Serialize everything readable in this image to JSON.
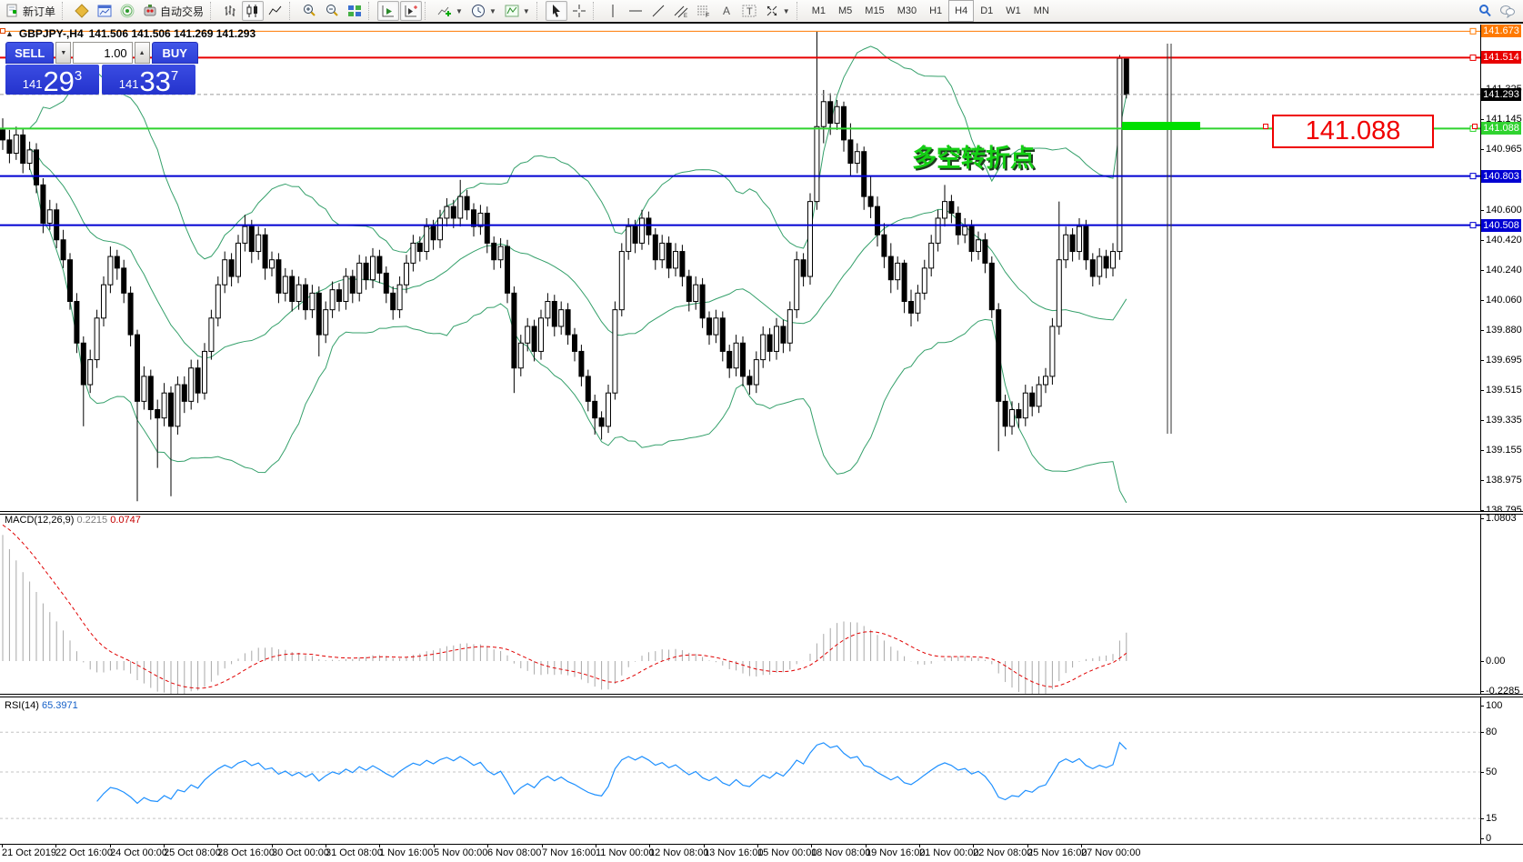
{
  "toolbar": {
    "new_order_label": "新订单",
    "auto_trading_label": "自动交易",
    "timeframes": [
      "M1",
      "M5",
      "M15",
      "M30",
      "H1",
      "H4",
      "D1",
      "W1",
      "MN"
    ],
    "active_timeframe": "H4"
  },
  "title": {
    "collapse_icon": "▲",
    "symbol": "GBPJPY-,H4",
    "ohlc": "141.506 141.506 141.269 141.293"
  },
  "trade_panel": {
    "sell_label": "SELL",
    "buy_label": "BUY",
    "volume": "1.00",
    "sell_prefix": "141",
    "sell_big": "29",
    "sell_sup": "3",
    "buy_prefix": "141",
    "buy_big": "33",
    "buy_sup": "7",
    "step_down": "▼",
    "step_up": "▲"
  },
  "objects": {
    "annotation": "多空转折点",
    "price_box": "141.088"
  },
  "hlines": [
    {
      "price": 141.673,
      "color": "#ff7a00",
      "width": 1
    },
    {
      "price": 141.514,
      "color": "#e80000",
      "width": 2
    },
    {
      "price": 141.088,
      "color": "#2fd32f",
      "width": 2
    },
    {
      "price": 140.803,
      "color": "#0000d2",
      "width": 2
    },
    {
      "price": 140.508,
      "color": "#0000d2",
      "width": 2
    }
  ],
  "bid": {
    "price": 141.293
  },
  "price_axis": {
    "ticks": [
      "141.505",
      "141.325",
      "141.145",
      "140.965",
      "140.785",
      "140.600",
      "140.420",
      "140.240",
      "140.060",
      "139.880",
      "139.695",
      "139.515",
      "139.335",
      "139.155",
      "138.975",
      "138.795"
    ],
    "badges": [
      {
        "text": "141.673",
        "bg": "#ff7a00",
        "price": 141.673
      },
      {
        "text": "141.514",
        "bg": "#e80000",
        "price": 141.514
      },
      {
        "text": "141.293",
        "bg": "#000000",
        "price": 141.293
      },
      {
        "text": "141.088",
        "bg": "#2fd32f",
        "price": 141.088
      },
      {
        "text": "140.803",
        "bg": "#0000d2",
        "price": 140.803
      },
      {
        "text": "140.508",
        "bg": "#0000d2",
        "price": 140.508
      }
    ]
  },
  "macd": {
    "name": "MACD(12,26,9)",
    "v1": "0.2215",
    "v2": "0.0747",
    "axis": [
      {
        "t": "1.0803",
        "v": 1.0803
      },
      {
        "t": "0.00",
        "v": 0
      },
      {
        "t": "-0.2285",
        "v": -0.2285
      }
    ]
  },
  "rsi": {
    "name": "RSI(14)",
    "v": "65.3971",
    "axis": [
      {
        "t": "100",
        "v": 100
      },
      {
        "t": "80",
        "v": 80
      },
      {
        "t": "50",
        "v": 50
      },
      {
        "t": "15",
        "v": 15
      },
      {
        "t": "0",
        "v": 0
      }
    ],
    "levels": [
      80,
      50,
      15
    ]
  },
  "chart_data": {
    "type": "candlestick",
    "title": "GBPJPY-,H4",
    "symbol": "GBPJPY",
    "period": "H4",
    "ylim": [
      138.795,
      141.713
    ],
    "x_labels": [
      "21 Oct 2019",
      "22 Oct 16:00",
      "24 Oct 00:00",
      "25 Oct 08:00",
      "28 Oct 16:00",
      "30 Oct 00:00",
      "31 Oct 08:00",
      "1 Nov 16:00",
      "5 Nov 00:00",
      "6 Nov 08:00",
      "7 Nov 16:00",
      "11 Nov 00:00",
      "12 Nov 08:00",
      "13 Nov 16:00",
      "15 Nov 00:00",
      "18 Nov 08:00",
      "19 Nov 16:00",
      "21 Nov 00:00",
      "22 Nov 08:00",
      "25 Nov 16:00",
      "27 Nov 00:00"
    ],
    "indicators": [
      {
        "name": "Bollinger Bands",
        "period": 20,
        "deviation": 2,
        "color": "#35a06b"
      },
      {
        "name": "MACD",
        "fast": 12,
        "slow": 26,
        "signal": 9,
        "current": [
          0.2215,
          0.0747
        ]
      },
      {
        "name": "RSI",
        "period": 14,
        "current": 65.3971
      }
    ],
    "candles": [
      [
        141.08,
        141.15,
        140.96,
        141.02
      ],
      [
        141.02,
        141.08,
        140.88,
        140.94
      ],
      [
        140.94,
        141.1,
        140.9,
        141.05
      ],
      [
        141.05,
        141.09,
        140.82,
        140.88
      ],
      [
        140.88,
        141.01,
        140.84,
        140.96
      ],
      [
        140.96,
        141.0,
        140.7,
        140.75
      ],
      [
        140.75,
        140.79,
        140.46,
        140.52
      ],
      [
        140.52,
        140.66,
        140.48,
        140.6
      ],
      [
        140.6,
        140.64,
        140.37,
        140.42
      ],
      [
        140.42,
        140.48,
        140.25,
        140.3
      ],
      [
        140.3,
        140.34,
        140.0,
        140.05
      ],
      [
        140.05,
        140.1,
        139.74,
        139.8
      ],
      [
        139.8,
        139.84,
        139.3,
        139.55
      ],
      [
        139.55,
        139.76,
        139.5,
        139.7
      ],
      [
        139.7,
        140.0,
        139.65,
        139.95
      ],
      [
        139.95,
        140.2,
        139.9,
        140.15
      ],
      [
        140.15,
        140.38,
        140.1,
        140.32
      ],
      [
        140.32,
        140.36,
        140.18,
        140.25
      ],
      [
        140.25,
        140.3,
        140.04,
        140.1
      ],
      [
        140.1,
        140.14,
        139.78,
        139.85
      ],
      [
        139.85,
        139.88,
        138.85,
        139.45
      ],
      [
        139.45,
        139.66,
        139.4,
        139.6
      ],
      [
        139.6,
        139.64,
        139.34,
        139.4
      ],
      [
        139.4,
        139.46,
        139.05,
        139.35
      ],
      [
        139.35,
        139.56,
        139.3,
        139.5
      ],
      [
        139.5,
        139.54,
        138.88,
        139.3
      ],
      [
        139.3,
        139.6,
        139.25,
        139.55
      ],
      [
        139.55,
        139.6,
        139.38,
        139.45
      ],
      [
        139.45,
        139.7,
        139.4,
        139.65
      ],
      [
        139.65,
        139.7,
        139.44,
        139.5
      ],
      [
        139.5,
        139.8,
        139.46,
        139.75
      ],
      [
        139.75,
        140.0,
        139.7,
        139.95
      ],
      [
        139.95,
        140.2,
        139.9,
        140.15
      ],
      [
        140.15,
        140.35,
        140.1,
        140.3
      ],
      [
        140.3,
        140.34,
        140.14,
        140.2
      ],
      [
        140.2,
        140.45,
        140.16,
        140.4
      ],
      [
        140.4,
        140.57,
        140.35,
        140.5
      ],
      [
        140.5,
        140.54,
        140.28,
        140.35
      ],
      [
        140.35,
        140.5,
        140.3,
        140.45
      ],
      [
        140.45,
        140.49,
        140.18,
        140.25
      ],
      [
        140.25,
        140.35,
        140.2,
        140.3
      ],
      [
        140.3,
        140.34,
        140.04,
        140.1
      ],
      [
        140.1,
        140.25,
        140.05,
        140.2
      ],
      [
        140.2,
        140.24,
        139.99,
        140.05
      ],
      [
        140.05,
        140.2,
        140.0,
        140.15
      ],
      [
        140.15,
        140.19,
        139.94,
        140.0
      ],
      [
        140.0,
        140.15,
        139.95,
        140.1
      ],
      [
        140.1,
        140.14,
        139.72,
        139.85
      ],
      [
        139.85,
        140.05,
        139.8,
        140.0
      ],
      [
        140.0,
        140.17,
        139.95,
        140.12
      ],
      [
        140.12,
        140.16,
        139.99,
        140.05
      ],
      [
        140.05,
        140.25,
        140.0,
        140.2
      ],
      [
        140.2,
        140.24,
        140.04,
        140.1
      ],
      [
        140.1,
        140.33,
        140.05,
        140.28
      ],
      [
        140.28,
        140.32,
        140.12,
        140.18
      ],
      [
        140.18,
        140.37,
        140.13,
        140.32
      ],
      [
        140.32,
        140.36,
        140.16,
        140.22
      ],
      [
        140.22,
        140.26,
        140.04,
        140.1
      ],
      [
        140.1,
        140.14,
        139.94,
        140.0
      ],
      [
        140.0,
        140.2,
        139.95,
        140.15
      ],
      [
        140.15,
        140.33,
        140.1,
        140.28
      ],
      [
        140.28,
        140.45,
        140.23,
        140.4
      ],
      [
        140.4,
        140.44,
        140.29,
        140.35
      ],
      [
        140.35,
        140.55,
        140.3,
        140.5
      ],
      [
        140.5,
        140.54,
        140.36,
        140.42
      ],
      [
        140.42,
        140.6,
        140.37,
        140.55
      ],
      [
        140.55,
        140.67,
        140.5,
        140.62
      ],
      [
        140.62,
        140.66,
        140.49,
        140.55
      ],
      [
        140.55,
        140.78,
        140.5,
        140.68
      ],
      [
        140.68,
        140.72,
        140.54,
        140.6
      ],
      [
        140.6,
        140.64,
        140.44,
        140.5
      ],
      [
        140.5,
        140.63,
        140.45,
        140.58
      ],
      [
        140.58,
        140.62,
        140.34,
        140.4
      ],
      [
        140.4,
        140.44,
        140.24,
        140.3
      ],
      [
        140.3,
        140.43,
        140.25,
        140.38
      ],
      [
        140.38,
        140.42,
        140.04,
        140.1
      ],
      [
        140.1,
        140.14,
        139.5,
        139.65
      ],
      [
        139.65,
        139.85,
        139.6,
        139.8
      ],
      [
        139.8,
        139.95,
        139.75,
        139.9
      ],
      [
        139.9,
        139.94,
        139.69,
        139.75
      ],
      [
        139.75,
        140.0,
        139.7,
        139.95
      ],
      [
        139.95,
        140.1,
        139.9,
        140.05
      ],
      [
        140.05,
        140.09,
        139.84,
        139.9
      ],
      [
        139.9,
        140.05,
        139.85,
        140.0
      ],
      [
        140.0,
        140.04,
        139.79,
        139.85
      ],
      [
        139.85,
        139.89,
        139.69,
        139.75
      ],
      [
        139.75,
        139.79,
        139.54,
        139.6
      ],
      [
        139.6,
        139.64,
        139.39,
        139.45
      ],
      [
        139.45,
        139.49,
        139.25,
        139.35
      ],
      [
        139.35,
        139.39,
        139.22,
        139.3
      ],
      [
        139.3,
        139.55,
        139.26,
        139.5
      ],
      [
        139.5,
        140.05,
        139.46,
        140.0
      ],
      [
        140.0,
        140.4,
        139.96,
        140.35
      ],
      [
        140.35,
        140.55,
        140.3,
        140.5
      ],
      [
        140.5,
        140.54,
        140.34,
        140.4
      ],
      [
        140.4,
        140.6,
        140.36,
        140.55
      ],
      [
        140.55,
        140.59,
        140.39,
        140.45
      ],
      [
        140.45,
        140.49,
        140.24,
        140.3
      ],
      [
        140.3,
        140.45,
        140.25,
        140.4
      ],
      [
        140.4,
        140.44,
        140.19,
        140.25
      ],
      [
        140.25,
        140.4,
        140.2,
        140.35
      ],
      [
        140.35,
        140.39,
        140.14,
        140.2
      ],
      [
        140.2,
        140.24,
        139.99,
        140.05
      ],
      [
        140.05,
        140.2,
        140.0,
        140.15
      ],
      [
        140.15,
        140.19,
        139.89,
        139.95
      ],
      [
        139.95,
        139.99,
        139.79,
        139.85
      ],
      [
        139.85,
        140.0,
        139.8,
        139.95
      ],
      [
        139.95,
        139.99,
        139.69,
        139.75
      ],
      [
        139.75,
        139.79,
        139.59,
        139.65
      ],
      [
        139.65,
        139.85,
        139.6,
        139.8
      ],
      [
        139.8,
        139.84,
        139.54,
        139.6
      ],
      [
        139.6,
        139.64,
        139.49,
        139.55
      ],
      [
        139.55,
        139.75,
        139.5,
        139.7
      ],
      [
        139.7,
        139.9,
        139.65,
        139.85
      ],
      [
        139.85,
        139.89,
        139.69,
        139.75
      ],
      [
        139.75,
        139.95,
        139.7,
        139.9
      ],
      [
        139.9,
        139.94,
        139.74,
        139.8
      ],
      [
        139.8,
        140.05,
        139.75,
        140.0
      ],
      [
        140.0,
        140.35,
        139.95,
        140.3
      ],
      [
        140.3,
        140.34,
        140.14,
        140.2
      ],
      [
        140.2,
        140.7,
        140.15,
        140.65
      ],
      [
        140.65,
        141.67,
        140.6,
        141.1
      ],
      [
        141.1,
        141.32,
        141.0,
        141.25
      ],
      [
        141.25,
        141.3,
        141.05,
        141.12
      ],
      [
        141.12,
        141.26,
        141.08,
        141.22
      ],
      [
        141.22,
        141.25,
        140.95,
        141.02
      ],
      [
        141.02,
        141.12,
        140.8,
        140.88
      ],
      [
        140.88,
        141.0,
        140.82,
        140.95
      ],
      [
        140.95,
        140.98,
        140.6,
        140.68
      ],
      [
        140.68,
        140.8,
        140.55,
        140.62
      ],
      [
        140.62,
        140.68,
        140.38,
        140.45
      ],
      [
        140.45,
        140.52,
        140.25,
        140.32
      ],
      [
        140.32,
        140.4,
        140.1,
        140.18
      ],
      [
        140.18,
        140.32,
        140.12,
        140.28
      ],
      [
        140.28,
        140.3,
        139.98,
        140.05
      ],
      [
        140.05,
        140.12,
        139.9,
        139.98
      ],
      [
        139.98,
        140.15,
        139.93,
        140.1
      ],
      [
        140.1,
        140.3,
        140.06,
        140.25
      ],
      [
        140.25,
        140.45,
        140.2,
        140.4
      ],
      [
        140.4,
        140.6,
        140.35,
        140.55
      ],
      [
        140.55,
        140.75,
        140.5,
        140.65
      ],
      [
        140.65,
        140.69,
        140.52,
        140.58
      ],
      [
        140.58,
        140.62,
        140.39,
        140.45
      ],
      [
        140.45,
        140.55,
        140.4,
        140.5
      ],
      [
        140.5,
        140.54,
        140.29,
        140.35
      ],
      [
        140.35,
        140.47,
        140.3,
        140.42
      ],
      [
        140.42,
        140.46,
        140.22,
        140.28
      ],
      [
        140.28,
        140.32,
        139.95,
        140.0
      ],
      [
        140.0,
        140.04,
        139.15,
        139.45
      ],
      [
        139.45,
        139.49,
        139.24,
        139.3
      ],
      [
        139.3,
        139.45,
        139.25,
        139.4
      ],
      [
        139.4,
        139.44,
        139.29,
        139.35
      ],
      [
        139.35,
        139.55,
        139.3,
        139.5
      ],
      [
        139.5,
        139.54,
        139.36,
        139.42
      ],
      [
        139.42,
        139.6,
        139.38,
        139.55
      ],
      [
        139.55,
        139.65,
        139.5,
        139.6
      ],
      [
        139.6,
        139.95,
        139.55,
        139.9
      ],
      [
        139.9,
        140.65,
        139.85,
        140.3
      ],
      [
        140.3,
        140.5,
        140.25,
        140.45
      ],
      [
        140.45,
        140.49,
        140.29,
        140.35
      ],
      [
        140.35,
        140.55,
        140.3,
        140.5
      ],
      [
        140.5,
        140.54,
        140.24,
        140.3
      ],
      [
        140.3,
        140.34,
        140.14,
        140.2
      ],
      [
        140.2,
        140.37,
        140.15,
        140.32
      ],
      [
        140.32,
        140.36,
        140.19,
        140.25
      ],
      [
        140.25,
        140.4,
        140.2,
        140.35
      ],
      [
        140.35,
        141.53,
        140.3,
        141.51
      ],
      [
        141.506,
        141.506,
        141.269,
        141.293
      ]
    ]
  }
}
